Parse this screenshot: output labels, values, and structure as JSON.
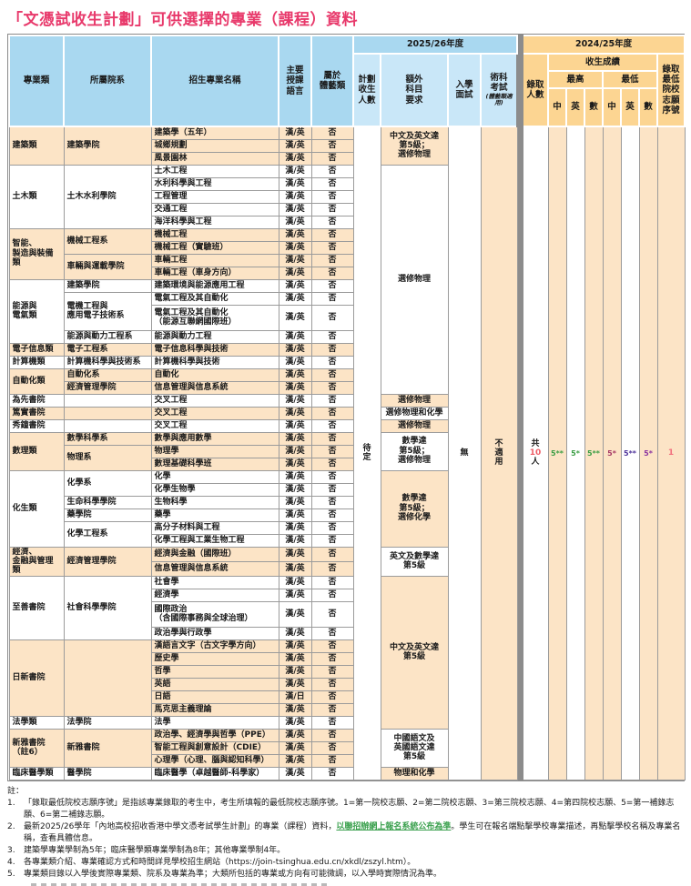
{
  "title": "「文憑試收生計劃」可供選擇的專業（課程）資料",
  "colors": {
    "title_pink": "#e8396b",
    "header_blue": "#a9d8f0",
    "header_blue_light": "#c9e7f8",
    "header_orange": "#fcd592",
    "row_peach": "#fce4c6",
    "divider_grey": "#8c8c8c",
    "admitted_num_red": "#ef5e67",
    "choice_pink": "#f2707e",
    "link_green": "#3aa04d",
    "score_colors": [
      "#3b9e44",
      "#3b9e44",
      "#3b9e44",
      "#a83a66",
      "#50359b",
      "#8c35a0"
    ]
  },
  "table": {
    "header": {
      "major": "專業類",
      "faculty": "所屬院系",
      "program": "招生專業名稱",
      "language": "主要\n授課\n語言",
      "sports": "屬於\n體藝類",
      "year_2025": "2025/26年度",
      "planned": "計劃\n收生\n人數",
      "extra": "額外\n科目\n要求",
      "interview": "入學\n面試",
      "skill": "術科\n考試",
      "skill_note": "(體藝類適用)",
      "year_2024": "2024/25年度",
      "admitted": "錄取\n人數",
      "scores": "收生成績",
      "max": "最高",
      "min": "最低",
      "chi": "中",
      "eng": "英",
      "math": "數",
      "choice": "錄取\n最低\n院校\n志願\n序號"
    },
    "merged": {
      "planned": "待\n定",
      "interview": "無",
      "skill": "不\n適\n用",
      "admitted_prefix": "共",
      "admitted_num": "10",
      "admitted_suffix": "人",
      "scores": [
        "5**",
        "5*",
        "5**",
        "5*",
        "5**",
        "5*"
      ],
      "choice": "1"
    },
    "extra_requirements": [
      {
        "text": "中文及英文達\n第5級；\n選修物理",
        "rows": 3,
        "shade": "peach"
      },
      {
        "text": "選修物理",
        "rows": 17,
        "shade": "white"
      },
      {
        "text": "選修物理",
        "rows": 1,
        "shade": "peach"
      },
      {
        "text": "選修物理和化學",
        "rows": 1,
        "shade": "white"
      },
      {
        "text": "選修物理",
        "rows": 1,
        "shade": "peach"
      },
      {
        "text": "數學達\n第5級；\n選修物理",
        "rows": 3,
        "shade": "white"
      },
      {
        "text": "數學達\n第5級；\n選修化學",
        "rows": 6,
        "shade": "peach"
      },
      {
        "text": "英文及數學達\n第5級",
        "rows": 2,
        "shade": "white"
      },
      {
        "text": "中文及英文達\n第5級",
        "rows": 11,
        "shade": "peach"
      },
      {
        "text": "中國語文及\n英國語文達\n第5級",
        "rows": 3,
        "shade": "white"
      },
      {
        "text": "物理和化學",
        "rows": 1,
        "shade": "peach"
      }
    ],
    "groups": [
      {
        "major": "建築類",
        "shade": "peach",
        "cells": [
          {
            "faculty": "建築學院",
            "programs": [
              {
                "name": "建築學（五年）",
                "lang": "漢/英",
                "sports": "否"
              },
              {
                "name": "城鄉規劃",
                "lang": "漢/英",
                "sports": "否"
              },
              {
                "name": "風景園林",
                "lang": "漢/英",
                "sports": "否"
              }
            ]
          }
        ]
      },
      {
        "major": "土木類",
        "shade": "white",
        "cells": [
          {
            "faculty": "土木水利學院",
            "programs": [
              {
                "name": "土木工程",
                "lang": "漢/英",
                "sports": "否"
              },
              {
                "name": "水利科學與工程",
                "lang": "漢/英",
                "sports": "否"
              },
              {
                "name": "工程管理",
                "lang": "漢/英",
                "sports": "否"
              },
              {
                "name": "交通工程",
                "lang": "漢/英",
                "sports": "否"
              },
              {
                "name": "海洋科學與工程",
                "lang": "漢/英",
                "sports": "否"
              }
            ]
          }
        ]
      },
      {
        "major": "智能、\n製造與裝備類",
        "shade": "peach",
        "cells": [
          {
            "faculty": "機械工程系",
            "programs": [
              {
                "name": "機械工程",
                "lang": "漢/英",
                "sports": "否"
              },
              {
                "name": "機械工程（實驗班）",
                "lang": "漢/英",
                "sports": "否"
              }
            ]
          },
          {
            "faculty": "車輛與運載學院",
            "programs": [
              {
                "name": "車輛工程",
                "lang": "漢/英",
                "sports": "否"
              },
              {
                "name": "車輛工程（車身方向）",
                "lang": "漢/英",
                "sports": "否"
              }
            ]
          }
        ]
      },
      {
        "major": "能源與\n電氣類",
        "shade": "white",
        "cells": [
          {
            "faculty": "建築學院",
            "programs": [
              {
                "name": "建築環境與能源應用工程",
                "lang": "漢/英",
                "sports": "否"
              }
            ]
          },
          {
            "faculty": "電機工程與\n應用電子技術系",
            "programs": [
              {
                "name": "電氣工程及其自動化",
                "lang": "漢/英",
                "sports": "否"
              },
              {
                "name": "電氣工程及其自動化\n（能源互聯網國際班）",
                "lang": "漢/英",
                "sports": "否",
                "tall": true
              }
            ]
          },
          {
            "faculty": "能源與動力工程系",
            "programs": [
              {
                "name": "能源與動力工程",
                "lang": "漢/英",
                "sports": "否"
              }
            ]
          }
        ]
      },
      {
        "major": "電子信息類",
        "shade": "peach",
        "cells": [
          {
            "faculty": "電子工程系",
            "programs": [
              {
                "name": "電子信息科學與技術",
                "lang": "漢/英",
                "sports": "否"
              }
            ]
          }
        ]
      },
      {
        "major": "計算機類",
        "shade": "white",
        "cells": [
          {
            "faculty": "計算機科學與技術系",
            "programs": [
              {
                "name": "計算機科學與技術",
                "lang": "漢/英",
                "sports": "否"
              }
            ]
          }
        ]
      },
      {
        "major": "自動化類",
        "shade": "peach",
        "cells": [
          {
            "faculty": "自動化系",
            "programs": [
              {
                "name": "自動化",
                "lang": "漢/英",
                "sports": "否"
              }
            ]
          },
          {
            "faculty": "經濟管理學院",
            "programs": [
              {
                "name": "信息管理與信息系統",
                "lang": "漢/英",
                "sports": "否"
              }
            ]
          }
        ]
      },
      {
        "major": "為先書院",
        "shade": "white",
        "cells": [
          {
            "faculty": "",
            "programs": [
              {
                "name": "交叉工程",
                "lang": "漢/英",
                "sports": "否"
              }
            ]
          }
        ]
      },
      {
        "major": "篤實書院",
        "shade": "peach",
        "cells": [
          {
            "faculty": "",
            "programs": [
              {
                "name": "交叉工程",
                "lang": "漢/英",
                "sports": "否"
              }
            ]
          }
        ]
      },
      {
        "major": "秀鐘書院",
        "shade": "white",
        "cells": [
          {
            "faculty": "",
            "programs": [
              {
                "name": "交叉工程",
                "lang": "漢/英",
                "sports": "否"
              }
            ]
          }
        ]
      },
      {
        "major": "數理類",
        "shade": "peach",
        "cells": [
          {
            "faculty": "數學科學系",
            "programs": [
              {
                "name": "數學與應用數學",
                "lang": "漢/英",
                "sports": "否"
              }
            ]
          },
          {
            "faculty": "物理系",
            "programs": [
              {
                "name": "物理學",
                "lang": "漢/英",
                "sports": "否"
              },
              {
                "name": "數理基礎科學班",
                "lang": "漢/英",
                "sports": "否"
              }
            ]
          }
        ]
      },
      {
        "major": "化生類",
        "shade": "white",
        "cells": [
          {
            "faculty": "化學系",
            "programs": [
              {
                "name": "化學",
                "lang": "漢/英",
                "sports": "否"
              },
              {
                "name": "化學生物學",
                "lang": "漢/英",
                "sports": "否"
              }
            ]
          },
          {
            "faculty": "生命科學學院",
            "programs": [
              {
                "name": "生物科學",
                "lang": "漢/英",
                "sports": "否"
              }
            ]
          },
          {
            "faculty": "藥學院",
            "programs": [
              {
                "name": "藥學",
                "lang": "漢/英",
                "sports": "否"
              }
            ]
          },
          {
            "faculty": "化學工程系",
            "programs": [
              {
                "name": "高分子材料與工程",
                "lang": "漢/英",
                "sports": "否"
              },
              {
                "name": "化學工程與工業生物工程",
                "lang": "漢/英",
                "sports": "否"
              }
            ]
          }
        ]
      },
      {
        "major": "經濟、\n金融與管理類",
        "shade": "peach",
        "cells": [
          {
            "faculty": "經濟管理學院",
            "programs": [
              {
                "name": "經濟與金融（國際班）",
                "lang": "漢/英",
                "sports": "否"
              },
              {
                "name": "信息管理與信息系統",
                "lang": "漢/英",
                "sports": "否"
              }
            ]
          }
        ]
      },
      {
        "major": "至善書院",
        "shade": "white",
        "cells": [
          {
            "faculty": "社會科學學院",
            "programs": [
              {
                "name": "社會學",
                "lang": "漢/英",
                "sports": "否"
              },
              {
                "name": "經濟學",
                "lang": "漢/英",
                "sports": "否"
              },
              {
                "name": "國際政治\n（含國際事務與全球治理）",
                "lang": "漢/英",
                "sports": "否",
                "tall": true
              },
              {
                "name": "政治學與行政學",
                "lang": "漢/英",
                "sports": "否"
              }
            ]
          }
        ]
      },
      {
        "major": "日新書院",
        "shade": "peach",
        "cells": [
          {
            "faculty": "",
            "programs": [
              {
                "name": "漢語言文字（古文字學方向）",
                "lang": "漢/英",
                "sports": "否"
              },
              {
                "name": "歷史學",
                "lang": "漢/英",
                "sports": "否"
              },
              {
                "name": "哲學",
                "lang": "漢/英",
                "sports": "否"
              },
              {
                "name": "英語",
                "lang": "漢/英",
                "sports": "否"
              },
              {
                "name": "日語",
                "lang": "漢/日",
                "sports": "否"
              },
              {
                "name": "馬克思主義理論",
                "lang": "漢/英",
                "sports": "否"
              }
            ]
          }
        ]
      },
      {
        "major": "法學類",
        "shade": "white",
        "cells": [
          {
            "faculty": "法學院",
            "programs": [
              {
                "name": "法學",
                "lang": "漢/英",
                "sports": "否"
              }
            ]
          }
        ]
      },
      {
        "major": "新雅書院\n（註6）",
        "shade": "peach",
        "cells": [
          {
            "faculty": "新雅書院",
            "programs": [
              {
                "name": "政治學、經濟學與哲學（PPE）",
                "lang": "漢/英",
                "sports": "否"
              },
              {
                "name": "智能工程與創意設計（CDIE）",
                "lang": "漢/英",
                "sports": "否"
              },
              {
                "name": "心理學（心理、腦與認知科學）",
                "lang": "漢/英",
                "sports": "否"
              }
            ]
          }
        ]
      },
      {
        "major": "臨床醫學類",
        "shade": "white",
        "cells": [
          {
            "faculty": "醫學院",
            "programs": [
              {
                "name": "臨床醫學（卓越醫師-科學家）",
                "lang": "漢/英",
                "sports": "否"
              }
            ]
          }
        ]
      }
    ]
  },
  "notes": {
    "label": "註：",
    "items": [
      {
        "num": "1.",
        "text": "「錄取最低院校志願序號」是指該專業錄取的考生中，考生所填報的最低院校志願序號。1=第一院校志願、2=第二院校志願、3=第三院校志願、4=第四院校志願、5=第一補錄志願、6=第二補錄志願。"
      },
      {
        "num": "2.",
        "pre": "最新2025/26學年「內地高校招收香港中學文憑考試學生計劃」的專業（課程）資料，",
        "link": "以聯招辦網上報名系統公布為準",
        "post": "。學生可在報名端點擊學校專業描述，再點擊學校名稱及專業名稱，查看具體信息。"
      },
      {
        "num": "3.",
        "text": "建築學專業學制為5年；臨床醫學類專業學制為8年；其他專業學制4年。"
      },
      {
        "num": "4.",
        "text": "各專業類介紹、專業確認方式和時間詳見學校招生網站（https://join-tsinghua.edu.cn/xkdl/zszyl.htm）。"
      },
      {
        "num": "5.",
        "text": "專業類目錄以入學後實際專業類、院系及專業為準；大類所包括的專業或方向有可能微調，以入學時實際情況為準。"
      }
    ]
  }
}
